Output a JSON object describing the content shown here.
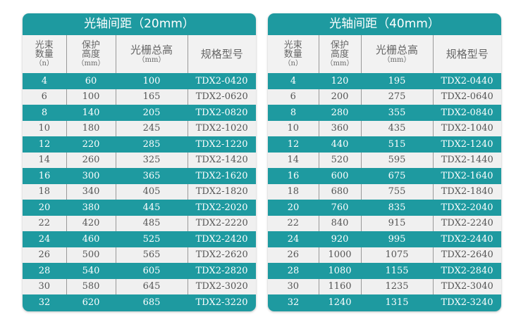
{
  "headers": {
    "beams": "光束\n数量\n（n）",
    "protect": "保护\n高度\n（mm）",
    "total": "光栅总高\n（mm）",
    "model": "规格型号"
  },
  "colors": {
    "teal": "#1e9aa0",
    "row_light": "#f0f0f0"
  },
  "tables": [
    {
      "title": "光轴间距（20mm）",
      "rows": [
        [
          "4",
          "60",
          "100",
          "TDX2-0420"
        ],
        [
          "6",
          "100",
          "165",
          "TDX2-0620"
        ],
        [
          "8",
          "140",
          "205",
          "TDX2-0820"
        ],
        [
          "10",
          "180",
          "245",
          "TDX2-1020"
        ],
        [
          "12",
          "220",
          "285",
          "TDX2-1220"
        ],
        [
          "14",
          "260",
          "325",
          "TDX2-1420"
        ],
        [
          "16",
          "300",
          "365",
          "TDX2-1620"
        ],
        [
          "18",
          "340",
          "405",
          "TDX2-1820"
        ],
        [
          "20",
          "380",
          "445",
          "TDX2-2020"
        ],
        [
          "22",
          "420",
          "485",
          "TDX2-2220"
        ],
        [
          "24",
          "460",
          "525",
          "TDX2-2420"
        ],
        [
          "26",
          "500",
          "565",
          "TDX2-2620"
        ],
        [
          "28",
          "540",
          "605",
          "TDX2-2820"
        ],
        [
          "30",
          "580",
          "645",
          "TDX2-3020"
        ],
        [
          "32",
          "620",
          "685",
          "TDX2-3220"
        ]
      ]
    },
    {
      "title": "光轴间距（40mm）",
      "rows": [
        [
          "4",
          "120",
          "195",
          "TDX2-0440"
        ],
        [
          "6",
          "200",
          "275",
          "TDX2-0640"
        ],
        [
          "8",
          "280",
          "355",
          "TDX2-0840"
        ],
        [
          "10",
          "360",
          "435",
          "TDX2-1040"
        ],
        [
          "12",
          "440",
          "515",
          "TDX2-1240"
        ],
        [
          "14",
          "520",
          "595",
          "TDX2-1440"
        ],
        [
          "16",
          "600",
          "675",
          "TDX2-1640"
        ],
        [
          "18",
          "680",
          "755",
          "TDX2-1840"
        ],
        [
          "20",
          "760",
          "835",
          "TDX2-2040"
        ],
        [
          "22",
          "840",
          "915",
          "TDX2-2240"
        ],
        [
          "24",
          "920",
          "995",
          "TDX2-2440"
        ],
        [
          "26",
          "1000",
          "1075",
          "TDX2-2640"
        ],
        [
          "28",
          "1080",
          "1155",
          "TDX2-2840"
        ],
        [
          "30",
          "1160",
          "1235",
          "TDX2-3040"
        ],
        [
          "32",
          "1240",
          "1315",
          "TDX2-3240"
        ]
      ]
    }
  ]
}
